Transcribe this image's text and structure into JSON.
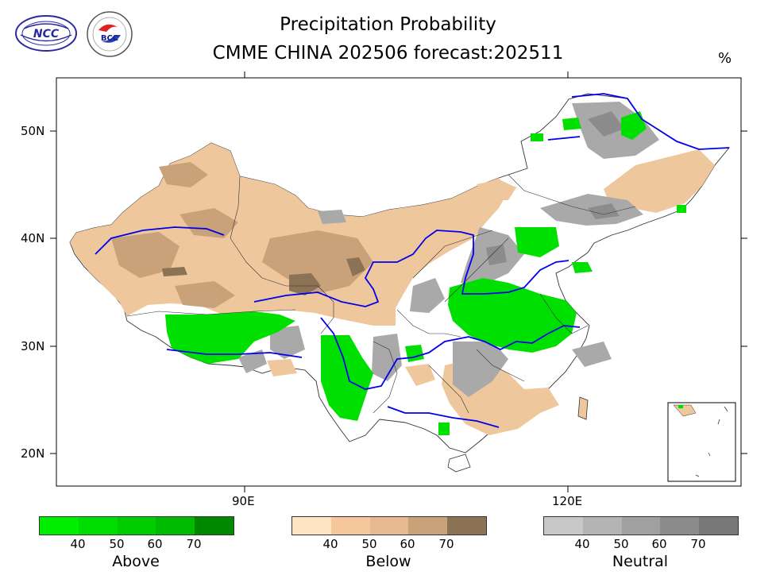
{
  "title_line1": "Precipitation Probability",
  "title_line2": "CMME CHINA 202506 forecast:202511",
  "unit": "%",
  "logos": {
    "left": "NCC",
    "right": "BCC"
  },
  "axes": {
    "lat_labels": [
      "50N",
      "40N",
      "30N",
      "20N"
    ],
    "lon_labels": [
      "90E",
      "120E"
    ]
  },
  "colors": {
    "river": "#0000ee",
    "border": "#333333"
  },
  "legend": [
    {
      "label": "Above",
      "ticks": [
        "40",
        "50",
        "60",
        "70"
      ],
      "colors": [
        "#00ee00",
        "#00dd00",
        "#00cc00",
        "#00bb00",
        "#008800"
      ]
    },
    {
      "label": "Below",
      "ticks": [
        "40",
        "50",
        "60",
        "70"
      ],
      "colors": [
        "#ffe4c4",
        "#f5c79a",
        "#e8b890",
        "#c9a27a",
        "#8c7355"
      ]
    },
    {
      "label": "Neutral",
      "ticks": [
        "40",
        "50",
        "60",
        "70"
      ],
      "colors": [
        "#c8c8c8",
        "#b4b4b4",
        "#a0a0a0",
        "#8c8c8c",
        "#787878"
      ]
    }
  ]
}
